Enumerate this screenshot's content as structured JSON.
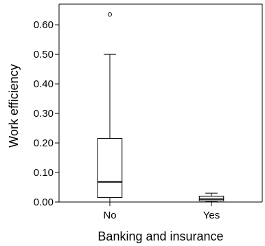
{
  "chart_data": {
    "type": "boxplot",
    "xlabel": "Banking and insurance",
    "ylabel": "Work efficiency",
    "ylim": [
      0,
      0.67
    ],
    "yticks": [
      0,
      0.1,
      0.2,
      0.3,
      0.4,
      0.5,
      0.6
    ],
    "ytick_labels": [
      "0.00",
      "0.10",
      "0.20",
      "0.30",
      "0.40",
      "0.50",
      "0.60"
    ],
    "categories": [
      "No",
      "Yes"
    ],
    "boxes": [
      {
        "category": "No",
        "whisker_low": 0.0,
        "q1": 0.015,
        "median": 0.068,
        "q3": 0.215,
        "whisker_high": 0.5,
        "outliers": [
          0.635
        ]
      },
      {
        "category": "Yes",
        "whisker_low": 0.001,
        "q1": 0.004,
        "median": 0.01,
        "q3": 0.02,
        "whisker_high": 0.03,
        "outliers": []
      }
    ],
    "grid": false,
    "colors": {
      "box_fill": "#ffffff",
      "line": "#000000"
    }
  }
}
